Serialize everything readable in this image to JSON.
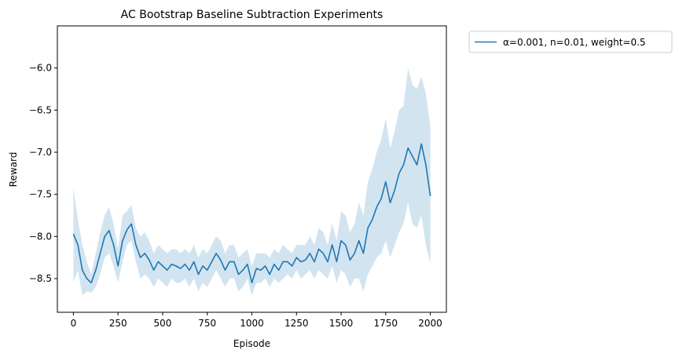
{
  "chart_data": {
    "type": "line",
    "title": "AC Bootstrap Baseline Subtraction Experiments",
    "xlabel": "Episode",
    "ylabel": "Reward",
    "xlim": [
      -90,
      2090
    ],
    "ylim": [
      -8.9,
      -5.5
    ],
    "xticks": [
      0,
      250,
      500,
      750,
      1000,
      1250,
      1500,
      1750,
      2000
    ],
    "yticks": [
      -8.5,
      -8.0,
      -7.5,
      -7.0,
      -6.5,
      -6.0
    ],
    "ytick_labels": [
      "−8.5",
      "−8.0",
      "−7.5",
      "−7.0",
      "−6.5",
      "−6.0"
    ],
    "grid": false,
    "legend_position": "outside-top-right",
    "series": [
      {
        "name": "α=0.001, n=0.01, weight=0.5",
        "color": "#1f77b4",
        "band_color": "#1f77b4",
        "x": [
          0,
          25,
          50,
          75,
          100,
          125,
          150,
          175,
          200,
          225,
          250,
          275,
          300,
          325,
          350,
          375,
          400,
          425,
          450,
          475,
          500,
          525,
          550,
          575,
          600,
          625,
          650,
          675,
          700,
          725,
          750,
          775,
          800,
          825,
          850,
          875,
          900,
          925,
          950,
          975,
          1000,
          1025,
          1050,
          1075,
          1100,
          1125,
          1150,
          1175,
          1200,
          1225,
          1250,
          1275,
          1300,
          1325,
          1350,
          1375,
          1400,
          1425,
          1450,
          1475,
          1500,
          1525,
          1550,
          1575,
          1600,
          1625,
          1650,
          1675,
          1700,
          1725,
          1750,
          1775,
          1800,
          1825,
          1850,
          1875,
          1900,
          1925,
          1950,
          1975,
          2000
        ],
        "mean": [
          -7.97,
          -8.1,
          -8.4,
          -8.5,
          -8.55,
          -8.4,
          -8.2,
          -8.0,
          -7.93,
          -8.1,
          -8.35,
          -8.05,
          -7.92,
          -7.85,
          -8.1,
          -8.25,
          -8.2,
          -8.28,
          -8.4,
          -8.3,
          -8.35,
          -8.4,
          -8.33,
          -8.35,
          -8.38,
          -8.33,
          -8.4,
          -8.3,
          -8.45,
          -8.35,
          -8.4,
          -8.3,
          -8.2,
          -8.28,
          -8.4,
          -8.3,
          -8.3,
          -8.45,
          -8.4,
          -8.33,
          -8.55,
          -8.38,
          -8.4,
          -8.35,
          -8.45,
          -8.33,
          -8.4,
          -8.3,
          -8.3,
          -8.35,
          -8.25,
          -8.3,
          -8.28,
          -8.2,
          -8.3,
          -8.15,
          -8.2,
          -8.3,
          -8.1,
          -8.3,
          -8.05,
          -8.1,
          -8.28,
          -8.2,
          -8.05,
          -8.2,
          -7.9,
          -7.8,
          -7.65,
          -7.55,
          -7.35,
          -7.6,
          -7.45,
          -7.25,
          -7.15,
          -6.95,
          -7.05,
          -7.15,
          -6.9,
          -7.15,
          -7.52
        ],
        "lower": [
          -8.55,
          -8.4,
          -8.7,
          -8.65,
          -8.67,
          -8.6,
          -8.45,
          -8.25,
          -8.2,
          -8.35,
          -8.55,
          -8.3,
          -8.1,
          -8.05,
          -8.3,
          -8.5,
          -8.45,
          -8.5,
          -8.6,
          -8.5,
          -8.55,
          -8.6,
          -8.5,
          -8.55,
          -8.55,
          -8.5,
          -8.6,
          -8.5,
          -8.65,
          -8.55,
          -8.6,
          -8.5,
          -8.4,
          -8.5,
          -8.6,
          -8.5,
          -8.5,
          -8.65,
          -8.6,
          -8.5,
          -8.7,
          -8.55,
          -8.55,
          -8.5,
          -8.6,
          -8.5,
          -8.55,
          -8.5,
          -8.45,
          -8.5,
          -8.4,
          -8.5,
          -8.45,
          -8.4,
          -8.5,
          -8.4,
          -8.45,
          -8.5,
          -8.35,
          -8.55,
          -8.4,
          -8.45,
          -8.6,
          -8.5,
          -8.5,
          -8.65,
          -8.45,
          -8.35,
          -8.25,
          -8.2,
          -8.05,
          -8.25,
          -8.1,
          -7.95,
          -7.85,
          -7.6,
          -7.85,
          -7.9,
          -7.75,
          -8.1,
          -8.32
        ],
        "upper": [
          -7.42,
          -7.8,
          -8.1,
          -8.3,
          -8.45,
          -8.2,
          -7.95,
          -7.75,
          -7.65,
          -7.85,
          -8.15,
          -7.75,
          -7.7,
          -7.62,
          -7.9,
          -8.0,
          -7.95,
          -8.05,
          -8.2,
          -8.1,
          -8.15,
          -8.2,
          -8.15,
          -8.15,
          -8.2,
          -8.15,
          -8.2,
          -8.1,
          -8.25,
          -8.15,
          -8.2,
          -8.1,
          -8.0,
          -8.05,
          -8.2,
          -8.1,
          -8.1,
          -8.25,
          -8.2,
          -8.15,
          -8.35,
          -8.2,
          -8.2,
          -8.2,
          -8.25,
          -8.15,
          -8.2,
          -8.1,
          -8.15,
          -8.2,
          -8.1,
          -8.1,
          -8.1,
          -8.0,
          -8.1,
          -7.9,
          -7.95,
          -8.1,
          -7.85,
          -8.05,
          -7.7,
          -7.75,
          -7.95,
          -7.85,
          -7.6,
          -7.75,
          -7.35,
          -7.2,
          -7.0,
          -6.85,
          -6.6,
          -6.95,
          -6.75,
          -6.5,
          -6.45,
          -6.0,
          -6.2,
          -6.25,
          -6.1,
          -6.3,
          -6.7
        ]
      }
    ]
  }
}
